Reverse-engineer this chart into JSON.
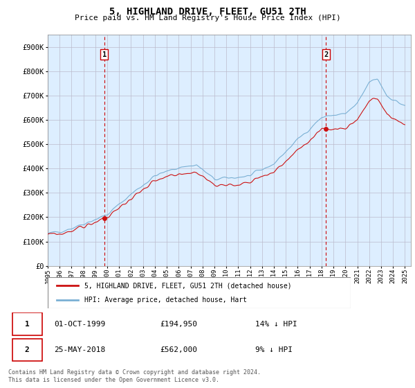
{
  "title": "5, HIGHLAND DRIVE, FLEET, GU51 2TH",
  "subtitle": "Price paid vs. HM Land Registry's House Price Index (HPI)",
  "xlim_start": 1995.0,
  "xlim_end": 2025.5,
  "ylim_min": 0,
  "ylim_max": 950000,
  "yticks": [
    0,
    100000,
    200000,
    300000,
    400000,
    500000,
    600000,
    700000,
    800000,
    900000
  ],
  "ytick_labels": [
    "£0",
    "£100K",
    "£200K",
    "£300K",
    "£400K",
    "£500K",
    "£600K",
    "£700K",
    "£800K",
    "£900K"
  ],
  "xticks": [
    1995,
    1996,
    1997,
    1998,
    1999,
    2000,
    2001,
    2002,
    2003,
    2004,
    2005,
    2006,
    2007,
    2008,
    2009,
    2010,
    2011,
    2012,
    2013,
    2014,
    2015,
    2016,
    2017,
    2018,
    2019,
    2020,
    2021,
    2022,
    2023,
    2024,
    2025
  ],
  "sale1_x": 1999.75,
  "sale1_y": 194950,
  "sale1_label": "1",
  "sale2_x": 2018.38,
  "sale2_y": 562000,
  "sale2_label": "2",
  "vline_color": "#cc0000",
  "hpi_color": "#7ab0d4",
  "price_color": "#cc1111",
  "chart_bg": "#ddeeff",
  "legend_label1": "5, HIGHLAND DRIVE, FLEET, GU51 2TH (detached house)",
  "legend_label2": "HPI: Average price, detached house, Hart",
  "table_row1": [
    "1",
    "01-OCT-1999",
    "£194,950",
    "14% ↓ HPI"
  ],
  "table_row2": [
    "2",
    "25-MAY-2018",
    "£562,000",
    "9% ↓ HPI"
  ],
  "footer": "Contains HM Land Registry data © Crown copyright and database right 2024.\nThis data is licensed under the Open Government Licence v3.0.",
  "background_color": "#ffffff",
  "grid_color": "#bbbbcc"
}
